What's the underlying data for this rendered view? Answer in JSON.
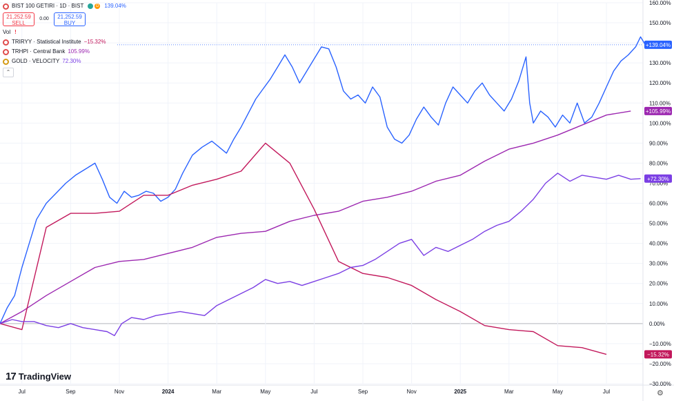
{
  "header": {
    "symbol_title": "BIST 100 GETIRI · 1D · BIST",
    "badge_d": "D",
    "change": "139.04%",
    "sell_price": "21,252.59",
    "sell_label": "SELL",
    "spread": "0.00",
    "buy_price": "21,252.59",
    "buy_label": "BUY",
    "vol_label": "Vol",
    "vol_warning": "!"
  },
  "legend": [
    {
      "label": "TRIRYY · Statistical Institute",
      "value": "−15.32%",
      "color": "#c2185b",
      "icon": "red-circle-icon"
    },
    {
      "label": "TRHPI · Central Bank",
      "value": "105.99%",
      "color": "#9c27b0",
      "icon": "red-circle-icon"
    },
    {
      "label": "GOLD · VELOCITY",
      "value": "72.30%",
      "color": "#7b3fe4",
      "icon": "gold-circle-icon"
    }
  ],
  "icons": {
    "collapse": "chevron-up-icon",
    "settings": "gear-icon",
    "logo": "tradingview-logo"
  },
  "logo_text": "TradingView",
  "settings_glyph": "⚙",
  "collapse_glyph": "⌃",
  "chart_data": {
    "type": "line",
    "x_tick_labels": [
      "Jul",
      "Sep",
      "Nov",
      "2024",
      "Mar",
      "May",
      "Jul",
      "Sep",
      "Nov",
      "2025",
      "Mar",
      "May",
      "Jul"
    ],
    "x_tick_months": [
      0,
      2,
      4,
      6,
      8,
      10,
      12,
      14,
      16,
      18,
      20,
      22,
      24
    ],
    "x_range_months": [
      -0.9,
      25.5
    ],
    "y_range": [
      -30,
      160
    ],
    "y_ticks": [
      "160.00%",
      "150.00%",
      "140.00%",
      "130.00%",
      "120.00%",
      "110.00%",
      "100.00%",
      "90.00%",
      "80.00%",
      "70.00%",
      "60.00%",
      "50.00%",
      "40.00%",
      "30.00%",
      "20.00%",
      "10.00%",
      "0.00%",
      "−10.00%",
      "−20.00%",
      "−30.00%"
    ],
    "y_tick_values": [
      160,
      150,
      140,
      130,
      120,
      110,
      100,
      90,
      80,
      70,
      60,
      50,
      40,
      30,
      20,
      10,
      0,
      -10,
      -20,
      -30
    ],
    "zero_line": 0,
    "grid": true,
    "series": [
      {
        "name": "BIST 100 GETIRI",
        "color": "#2962ff",
        "last_label": "+139.04%",
        "last_value": 139.04,
        "points": [
          [
            -0.9,
            0
          ],
          [
            -0.6,
            8
          ],
          [
            -0.3,
            14
          ],
          [
            0,
            28
          ],
          [
            0.3,
            40
          ],
          [
            0.6,
            52
          ],
          [
            1,
            60
          ],
          [
            1.4,
            65
          ],
          [
            1.8,
            70
          ],
          [
            2.2,
            74
          ],
          [
            2.6,
            77
          ],
          [
            3,
            80
          ],
          [
            3.3,
            72
          ],
          [
            3.6,
            63
          ],
          [
            3.9,
            60
          ],
          [
            4.2,
            66
          ],
          [
            4.5,
            63
          ],
          [
            4.8,
            64
          ],
          [
            5.1,
            66
          ],
          [
            5.4,
            65
          ],
          [
            5.7,
            61
          ],
          [
            6.0,
            63
          ],
          [
            6.3,
            67
          ],
          [
            6.6,
            75
          ],
          [
            7.0,
            84
          ],
          [
            7.4,
            88
          ],
          [
            7.8,
            91
          ],
          [
            8.1,
            88
          ],
          [
            8.4,
            85
          ],
          [
            8.7,
            92
          ],
          [
            9.0,
            98
          ],
          [
            9.3,
            105
          ],
          [
            9.6,
            112
          ],
          [
            9.9,
            117
          ],
          [
            10.2,
            122
          ],
          [
            10.5,
            128
          ],
          [
            10.8,
            134
          ],
          [
            11.1,
            128
          ],
          [
            11.4,
            120
          ],
          [
            11.7,
            126
          ],
          [
            12.0,
            132
          ],
          [
            12.3,
            138
          ],
          [
            12.6,
            137
          ],
          [
            12.9,
            128
          ],
          [
            13.2,
            116
          ],
          [
            13.5,
            112
          ],
          [
            13.8,
            114
          ],
          [
            14.1,
            110
          ],
          [
            14.4,
            118
          ],
          [
            14.7,
            113
          ],
          [
            15.0,
            98
          ],
          [
            15.3,
            92
          ],
          [
            15.6,
            90
          ],
          [
            15.9,
            94
          ],
          [
            16.2,
            102
          ],
          [
            16.5,
            108
          ],
          [
            16.8,
            103
          ],
          [
            17.1,
            99
          ],
          [
            17.4,
            110
          ],
          [
            17.7,
            118
          ],
          [
            18.0,
            114
          ],
          [
            18.3,
            110
          ],
          [
            18.6,
            116
          ],
          [
            18.9,
            120
          ],
          [
            19.2,
            114
          ],
          [
            19.5,
            110
          ],
          [
            19.8,
            106
          ],
          [
            20.1,
            112
          ],
          [
            20.4,
            121
          ],
          [
            20.7,
            133
          ],
          [
            20.85,
            110
          ],
          [
            21.0,
            100
          ],
          [
            21.3,
            106
          ],
          [
            21.6,
            103
          ],
          [
            21.9,
            98
          ],
          [
            22.2,
            104
          ],
          [
            22.5,
            100
          ],
          [
            22.8,
            110
          ],
          [
            23.1,
            100
          ],
          [
            23.4,
            103
          ],
          [
            23.7,
            110
          ],
          [
            24.0,
            118
          ],
          [
            24.3,
            126
          ],
          [
            24.6,
            131
          ],
          [
            24.9,
            134
          ],
          [
            25.2,
            138
          ],
          [
            25.4,
            143
          ],
          [
            25.6,
            139
          ],
          [
            25.8,
            139.04
          ]
        ]
      },
      {
        "name": "TRHPI · Central Bank",
        "color": "#9c27b0",
        "last_label": "+105.99%",
        "last_value": 105.99,
        "points": [
          [
            -0.9,
            0
          ],
          [
            0,
            6
          ],
          [
            1,
            14
          ],
          [
            2,
            21
          ],
          [
            3,
            28
          ],
          [
            4,
            31
          ],
          [
            5,
            32
          ],
          [
            6,
            35
          ],
          [
            7,
            38
          ],
          [
            8,
            43
          ],
          [
            9,
            45
          ],
          [
            10,
            46
          ],
          [
            11,
            51
          ],
          [
            12,
            54
          ],
          [
            13,
            56
          ],
          [
            14,
            61
          ],
          [
            15,
            63
          ],
          [
            16,
            66
          ],
          [
            17,
            71
          ],
          [
            18,
            74
          ],
          [
            19,
            81
          ],
          [
            20,
            87
          ],
          [
            21,
            90
          ],
          [
            22,
            94
          ],
          [
            23,
            99
          ],
          [
            24,
            104
          ],
          [
            25,
            105.99
          ]
        ]
      },
      {
        "name": "TRIRYY · Statistical Institute",
        "color": "#c2185b",
        "last_label": "−15.32%",
        "last_value": -15.32,
        "points": [
          [
            -0.9,
            0
          ],
          [
            0,
            -3
          ],
          [
            1,
            48
          ],
          [
            2,
            55
          ],
          [
            3,
            55
          ],
          [
            4,
            56
          ],
          [
            5,
            64
          ],
          [
            6,
            64
          ],
          [
            7,
            69
          ],
          [
            8,
            72
          ],
          [
            9,
            76
          ],
          [
            10,
            90
          ],
          [
            11,
            80
          ],
          [
            12,
            57
          ],
          [
            13,
            31
          ],
          [
            14,
            25
          ],
          [
            15,
            23
          ],
          [
            16,
            19
          ],
          [
            17,
            12
          ],
          [
            18,
            6
          ],
          [
            19,
            -1
          ],
          [
            20,
            -3
          ],
          [
            21,
            -4
          ],
          [
            22,
            -11
          ],
          [
            23,
            -12
          ],
          [
            24,
            -15.32
          ]
        ]
      },
      {
        "name": "GOLD · VELOCITY",
        "color": "#7b3fe4",
        "last_label": "+72.30%",
        "last_value": 72.3,
        "points": [
          [
            -0.9,
            0
          ],
          [
            -0.4,
            2
          ],
          [
            0,
            1
          ],
          [
            0.5,
            1
          ],
          [
            1,
            -1
          ],
          [
            1.5,
            -2
          ],
          [
            2,
            0
          ],
          [
            2.5,
            -2
          ],
          [
            3,
            -3
          ],
          [
            3.5,
            -4
          ],
          [
            3.8,
            -6
          ],
          [
            4.1,
            0
          ],
          [
            4.5,
            3
          ],
          [
            5,
            2
          ],
          [
            5.5,
            4
          ],
          [
            6,
            5
          ],
          [
            6.5,
            6
          ],
          [
            7,
            5
          ],
          [
            7.5,
            4
          ],
          [
            8,
            9
          ],
          [
            8.5,
            12
          ],
          [
            9,
            15
          ],
          [
            9.5,
            18
          ],
          [
            10,
            22
          ],
          [
            10.5,
            20
          ],
          [
            11,
            21
          ],
          [
            11.5,
            19
          ],
          [
            12,
            21
          ],
          [
            12.5,
            23
          ],
          [
            13,
            25
          ],
          [
            13.5,
            28
          ],
          [
            14,
            29
          ],
          [
            14.5,
            32
          ],
          [
            15,
            36
          ],
          [
            15.5,
            40
          ],
          [
            16,
            42
          ],
          [
            16.5,
            34
          ],
          [
            17,
            38
          ],
          [
            17.5,
            36
          ],
          [
            18,
            39
          ],
          [
            18.5,
            42
          ],
          [
            19,
            46
          ],
          [
            19.5,
            49
          ],
          [
            20,
            51
          ],
          [
            20.5,
            56
          ],
          [
            21,
            62
          ],
          [
            21.5,
            70
          ],
          [
            22,
            75
          ],
          [
            22.5,
            71
          ],
          [
            23,
            74
          ],
          [
            23.5,
            73
          ],
          [
            24,
            72
          ],
          [
            24.5,
            74
          ],
          [
            25,
            72
          ],
          [
            25.4,
            72.3
          ]
        ]
      }
    ]
  }
}
